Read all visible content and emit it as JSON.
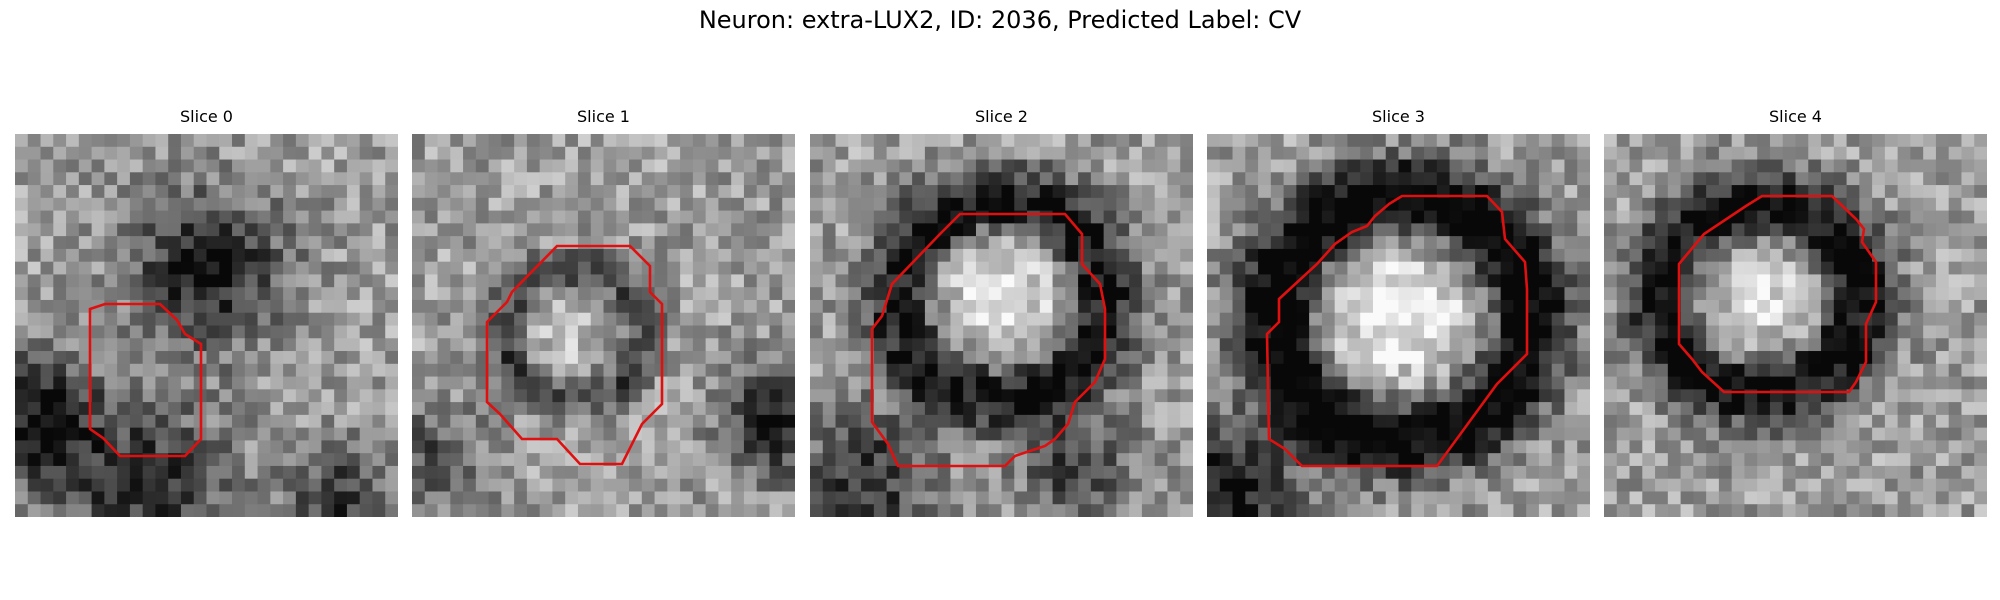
{
  "figure": {
    "title": "Neuron: extra-LUX2, ID: 2036, Predicted Label: CV"
  },
  "panels": [
    {
      "title": "Slice 0",
      "description": "grayscale EM patch; small membrane outlined lower-left with dark blob upper-center"
    },
    {
      "title": "Slice 1",
      "description": "grayscale EM patch; faint circular membrane outlined in center"
    },
    {
      "title": "Slice 2",
      "description": "grayscale EM patch; large bright vesicle with dark ring, outlined"
    },
    {
      "title": "Slice 3",
      "description": "grayscale EM patch; large bright vesicle with thick dark ring, outlined"
    },
    {
      "title": "Slice 4",
      "description": "grayscale EM patch; round vesicle with dark ring, outlined"
    }
  ],
  "colors": {
    "contour": "#e01010",
    "background": "#ffffff"
  }
}
